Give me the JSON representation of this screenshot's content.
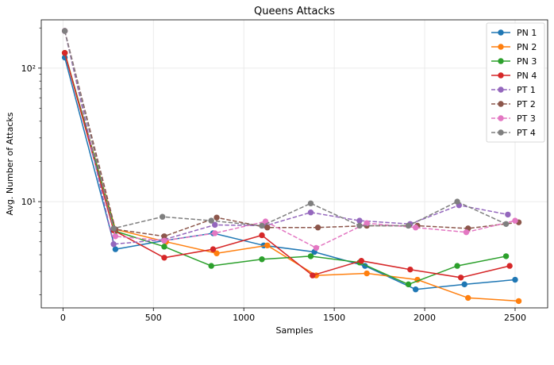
{
  "chart_data": {
    "type": "line",
    "title": "Queens Attacks",
    "xlabel": "Samples",
    "ylabel": "Avg. Number of Attacks",
    "xlim": [
      -120,
      2680
    ],
    "ylim": [
      1.6,
      230
    ],
    "yscale": "log",
    "grid": true,
    "legend_position": "top-right",
    "x_ticks": [
      0,
      500,
      1000,
      1500,
      2000,
      2500
    ],
    "x_tick_labels": [
      "0",
      "500",
      "1000",
      "1500",
      "2000",
      "2500"
    ],
    "y_ticks": [
      10,
      100
    ],
    "y_tick_labels": [
      "10¹",
      "10²"
    ],
    "series": [
      {
        "name": "PN 1",
        "color": "#1f77b4",
        "dashed": false,
        "x": [
          10,
          290,
          560,
          830,
          1110,
          1390,
          1670,
          1950,
          2220,
          2500
        ],
        "y": [
          120,
          4.4,
          5.1,
          5.8,
          4.7,
          4.2,
          3.3,
          2.2,
          2.4,
          2.6
        ]
      },
      {
        "name": "PN 2",
        "color": "#ff7f0e",
        "dashed": false,
        "x": [
          10,
          290,
          570,
          850,
          1130,
          1400,
          1680,
          1960,
          2240,
          2520
        ],
        "y": [
          130,
          6.2,
          5.0,
          4.1,
          4.7,
          2.8,
          2.9,
          2.6,
          1.9,
          1.8
        ]
      },
      {
        "name": "PN 3",
        "color": "#2ca02c",
        "dashed": false,
        "x": [
          10,
          290,
          560,
          820,
          1100,
          1370,
          1640,
          1910,
          2180,
          2450
        ],
        "y": [
          130,
          6.0,
          4.6,
          3.3,
          3.7,
          3.9,
          3.5,
          2.4,
          3.3,
          3.9
        ]
      },
      {
        "name": "PN 4",
        "color": "#d62728",
        "dashed": false,
        "x": [
          10,
          280,
          560,
          830,
          1100,
          1380,
          1650,
          1920,
          2200,
          2470
        ],
        "y": [
          130,
          6.1,
          3.8,
          4.4,
          5.6,
          2.8,
          3.6,
          3.1,
          2.7,
          3.3
        ]
      },
      {
        "name": "PT 1",
        "color": "#9467bd",
        "dashed": true,
        "x": [
          10,
          280,
          560,
          840,
          1120,
          1370,
          1640,
          1920,
          2190,
          2460
        ],
        "y": [
          190,
          4.8,
          5.2,
          6.7,
          6.6,
          8.3,
          7.2,
          6.8,
          9.4,
          8.0
        ]
      },
      {
        "name": "PT 2",
        "color": "#8c564b",
        "dashed": true,
        "x": [
          10,
          290,
          560,
          850,
          1130,
          1410,
          1680,
          1960,
          2240,
          2520
        ],
        "y": [
          190,
          6.2,
          5.5,
          7.6,
          6.4,
          6.4,
          6.6,
          6.6,
          6.3,
          7.0
        ]
      },
      {
        "name": "PT 3",
        "color": "#e377c2",
        "dashed": true,
        "x": [
          10,
          290,
          560,
          840,
          1120,
          1400,
          1680,
          1950,
          2230,
          2500
        ],
        "y": [
          190,
          5.5,
          5.1,
          5.8,
          7.1,
          4.5,
          6.9,
          6.4,
          5.9,
          7.2
        ]
      },
      {
        "name": "PT 4",
        "color": "#7f7f7f",
        "dashed": true,
        "x": [
          10,
          280,
          550,
          820,
          1100,
          1370,
          1640,
          1910,
          2180,
          2450
        ],
        "y": [
          190,
          6.3,
          7.7,
          7.2,
          6.6,
          9.7,
          6.6,
          6.6,
          10.0,
          6.8
        ]
      }
    ]
  }
}
